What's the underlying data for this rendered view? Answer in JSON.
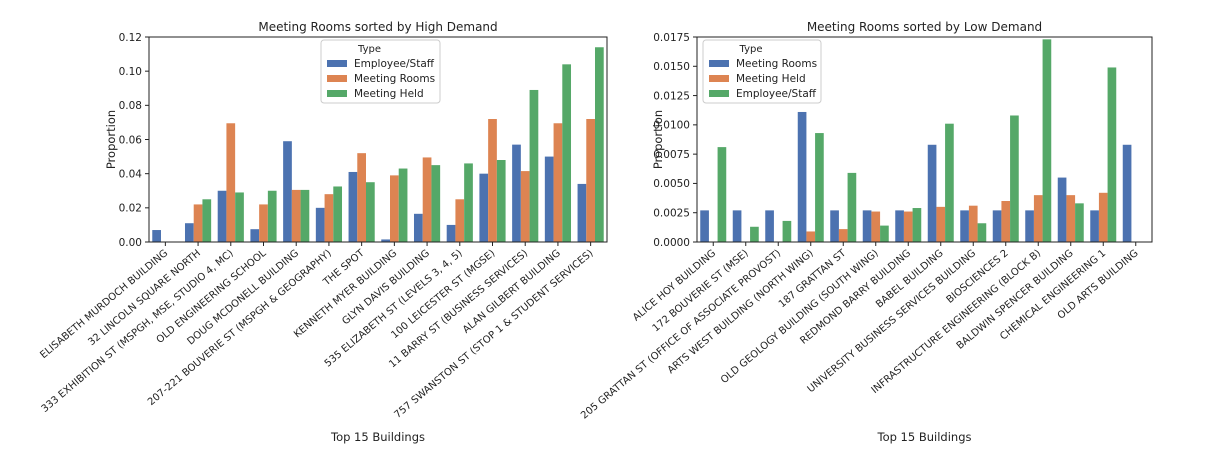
{
  "chart_data": [
    {
      "type": "bar",
      "title": "Meeting Rooms sorted by High Demand",
      "xlabel": "Top 15 Buildings",
      "ylabel": "Proportion",
      "ylim": [
        0,
        0.12
      ],
      "yticks": [
        "0.00",
        "0.02",
        "0.04",
        "0.06",
        "0.08",
        "0.10",
        "0.12"
      ],
      "legend": {
        "title": "Type",
        "placement": "top-center"
      },
      "categories": [
        "ELISABETH MURDOCH BUILDING",
        "32 LINCOLN SQUARE NORTH",
        "333 EXHIBITION ST (MSPGH, MSE, STUDIO 4, MC)",
        "OLD ENGINEERING SCHOOL",
        "DOUG MCDONELL BUILDING",
        "207-221 BOUVERIE ST (MSPGH & GEOGRAPHY)",
        "THE SPOT",
        "KENNETH MYER BUILDING",
        "GLYN DAVIS BUILDING",
        "535 ELIZABETH ST (LEVELS 3, 4, 5)",
        "100 LEICESTER ST (MGSE)",
        "11 BARRY ST (BUSINESS SERVICES)",
        "ALAN GILBERT BUILDING",
        "757 SWANSTON ST (STOP 1 & STUDENT SERVICES)"
      ],
      "series": [
        {
          "name": "Employee/Staff",
          "color": "#4c72b0",
          "values": [
            0.007,
            0.011,
            0.03,
            0.0075,
            0.059,
            0.02,
            0.041,
            0.0015,
            0.0165,
            0.01,
            0.04,
            0.057,
            0.05,
            0.034
          ]
        },
        {
          "name": "Meeting Rooms",
          "color": "#dd8452",
          "values": [
            0.0,
            0.022,
            0.0695,
            0.022,
            0.0305,
            0.028,
            0.052,
            0.039,
            0.0495,
            0.025,
            0.072,
            0.0415,
            0.0695,
            0.072
          ]
        },
        {
          "name": "Meeting Held",
          "color": "#55a868",
          "values": [
            0.0,
            0.025,
            0.029,
            0.03,
            0.0305,
            0.0325,
            0.035,
            0.043,
            0.045,
            0.046,
            0.048,
            0.089,
            0.104,
            0.114
          ]
        }
      ]
    },
    {
      "type": "bar",
      "title": "Meeting Rooms sorted by Low Demand",
      "xlabel": "Top 15 Buildings",
      "ylabel": "Proportion",
      "ylim": [
        0,
        0.0175
      ],
      "yticks": [
        "0.0000",
        "0.0025",
        "0.0050",
        "0.0075",
        "0.0100",
        "0.0125",
        "0.0150",
        "0.0175"
      ],
      "legend": {
        "title": "Type",
        "placement": "top-left"
      },
      "categories": [
        "ALICE HOY BUILDING",
        "172 BOUVERIE ST (MSE)",
        "205 GRATTAN ST (OFFICE OF ASSOCIATE PROVOST)",
        "ARTS WEST BUILDING (NORTH WING)",
        "187 GRATTAN ST",
        "OLD GEOLOGY BUILDING (SOUTH WING)",
        "REDMOND BARRY BUILDING",
        "BABEL BUILDING",
        "UNIVERSITY BUSINESS SERVICES BUILDING",
        "BIOSCIENCES 2",
        "INFRASTRUCTURE ENGINEERING (BLOCK B)",
        "BALDWIN SPENCER BUILDING",
        "CHEMICAL ENGINEERING 1",
        "OLD ARTS BUILDING"
      ],
      "series": [
        {
          "name": "Meeting Rooms",
          "color": "#4c72b0",
          "values": [
            0.0027,
            0.0027,
            0.0027,
            0.0111,
            0.0027,
            0.0027,
            0.0027,
            0.0083,
            0.0027,
            0.0027,
            0.0027,
            0.0055,
            0.0027,
            0.0083
          ]
        },
        {
          "name": "Meeting Held",
          "color": "#dd8452",
          "values": [
            0.0,
            0.0,
            0.0,
            0.0009,
            0.0011,
            0.0026,
            0.0026,
            0.003,
            0.0031,
            0.0035,
            0.004,
            0.004,
            0.0042,
            0.0
          ]
        },
        {
          "name": "Employee/Staff",
          "color": "#55a868",
          "values": [
            0.0081,
            0.0013,
            0.0018,
            0.0093,
            0.0059,
            0.0014,
            0.0029,
            0.0101,
            0.0016,
            0.0108,
            0.0173,
            0.0033,
            0.0149,
            0.0
          ]
        }
      ]
    }
  ]
}
